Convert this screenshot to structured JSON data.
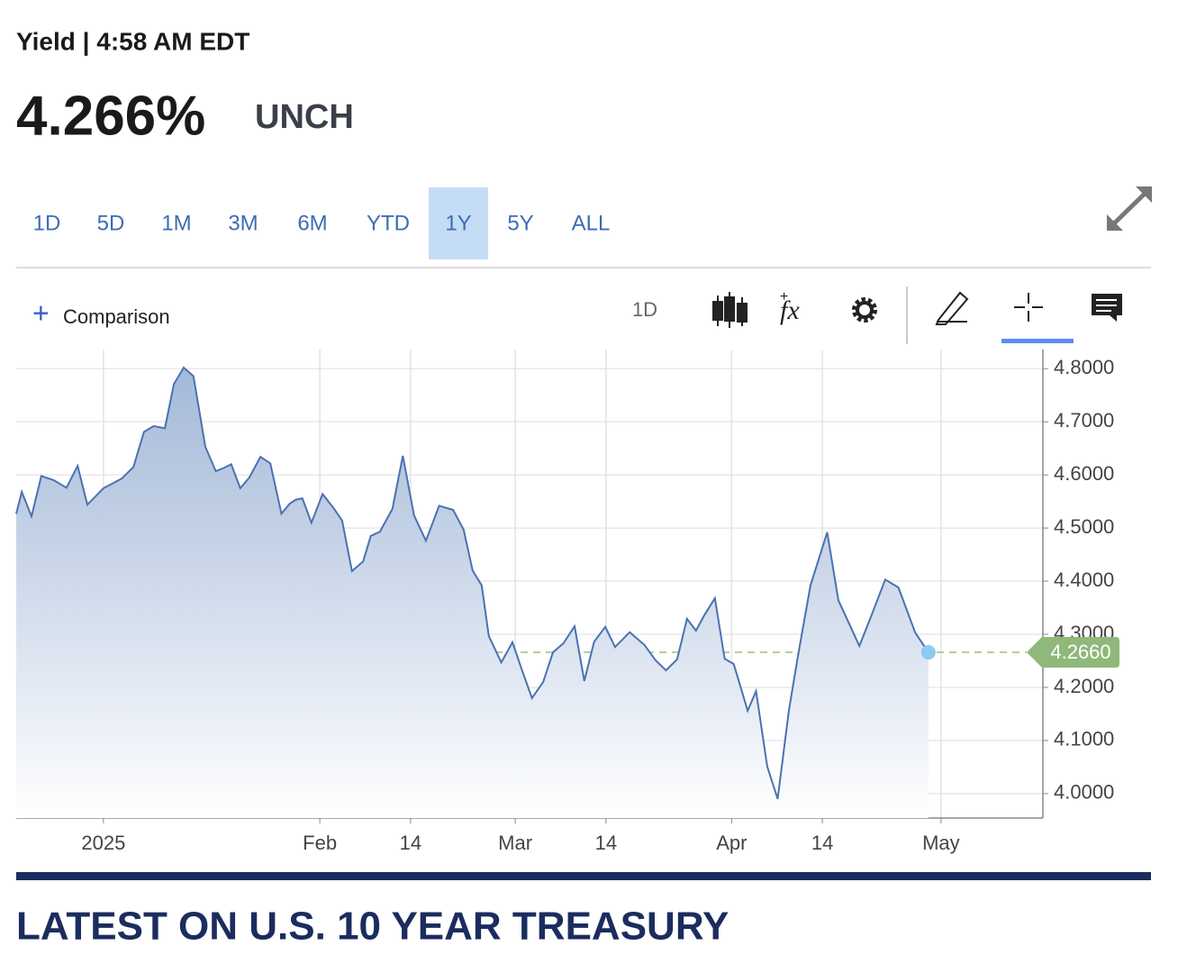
{
  "header": {
    "title": "Yield | 4:58 AM EDT",
    "price": "4.266%",
    "change": "UNCH"
  },
  "tabs": [
    "1D",
    "5D",
    "1M",
    "3M",
    "6M",
    "YTD",
    "1Y",
    "5Y",
    "ALL"
  ],
  "active_tab": 6,
  "toolbar": {
    "comparison": "Comparison",
    "interval": "1D"
  },
  "chart_data": {
    "type": "line",
    "color": "#4a72b0",
    "grid": true,
    "area": true,
    "x": [
      -11.5,
      -10.7,
      -9.3,
      -7.9,
      -6.1,
      -4.3,
      -2.7,
      -1.3,
      1,
      3.6,
      5.3,
      6.8,
      8.2,
      9.8,
      11.1,
      12.5,
      13.9,
      15.6,
      17.1,
      18.4,
      19.3,
      20.6,
      21.9,
      23.5,
      24.9,
      26.5,
      27.7,
      28.5,
      29.5,
      30.8,
      32.4,
      33.9,
      35.2,
      36.6,
      38.2,
      39.3,
      40.6,
      42.4,
      43.9,
      45.5,
      47.2,
      49.1,
      51.1,
      52.6,
      53.9,
      55.2,
      56.2,
      58.0,
      59.6,
      61.0,
      62.4,
      64.0,
      65.4,
      66.9,
      68.5,
      69.9,
      71.3,
      72.9,
      74.3,
      76.4,
      78.5,
      80.1,
      81.6,
      83.2,
      84.6,
      85.9,
      87.1,
      88.6,
      90.0,
      91.3,
      93.3,
      94.5,
      96.1,
      97.6,
      99.2,
      100.5,
      102.3,
      104.7,
      106.3,
      107.7,
      109.3,
      110.9,
      113.0,
      114.9,
      117.3,
      119.2
    ],
    "values": [
      4.527,
      4.568,
      4.522,
      4.598,
      4.59,
      4.576,
      4.617,
      4.544,
      4.575,
      4.593,
      4.615,
      4.681,
      4.692,
      4.688,
      4.771,
      4.802,
      4.786,
      4.653,
      4.607,
      4.614,
      4.62,
      4.575,
      4.595,
      4.634,
      4.622,
      4.527,
      4.546,
      4.553,
      4.556,
      4.51,
      4.564,
      4.539,
      4.514,
      4.419,
      4.437,
      4.485,
      4.493,
      4.536,
      4.636,
      4.524,
      4.476,
      4.542,
      4.534,
      4.497,
      4.42,
      4.392,
      4.297,
      4.247,
      4.285,
      4.231,
      4.18,
      4.21,
      4.266,
      4.283,
      4.315,
      4.212,
      4.286,
      4.314,
      4.276,
      4.304,
      4.28,
      4.251,
      4.232,
      4.253,
      4.329,
      4.307,
      4.336,
      4.368,
      4.254,
      4.244,
      4.156,
      4.193,
      4.051,
      3.99,
      4.156,
      4.259,
      4.392,
      4.492,
      4.364,
      4.324,
      4.278,
      4.331,
      4.403,
      4.388,
      4.303,
      4.266
    ],
    "xlim": [
      -11.5,
      135.6
    ],
    "xticks": [
      {
        "value": 1,
        "label": "2025"
      },
      {
        "value": 32,
        "label": "Feb"
      },
      {
        "value": 45,
        "label": "14"
      },
      {
        "value": 60,
        "label": "Mar"
      },
      {
        "value": 73,
        "label": "14"
      },
      {
        "value": 91,
        "label": "Apr"
      },
      {
        "value": 104,
        "label": "14"
      },
      {
        "value": 121,
        "label": "May"
      }
    ],
    "ylim": [
      3.954,
      4.836
    ],
    "yticks": [
      {
        "value": 4.0,
        "label": "4.0000"
      },
      {
        "value": 4.1,
        "label": "4.1000"
      },
      {
        "value": 4.2,
        "label": "4.2000"
      },
      {
        "value": 4.3,
        "label": "4.3000"
      },
      {
        "value": 4.4,
        "label": "4.4000"
      },
      {
        "value": 4.5,
        "label": "4.5000"
      },
      {
        "value": 4.6,
        "label": "4.6000"
      },
      {
        "value": 4.7,
        "label": "4.7000"
      },
      {
        "value": 4.8,
        "label": "4.8000"
      }
    ],
    "last_value": {
      "value": 4.266,
      "label": "4.2660"
    }
  },
  "section_title": "LATEST ON U.S. 10 YEAR TREASURY"
}
